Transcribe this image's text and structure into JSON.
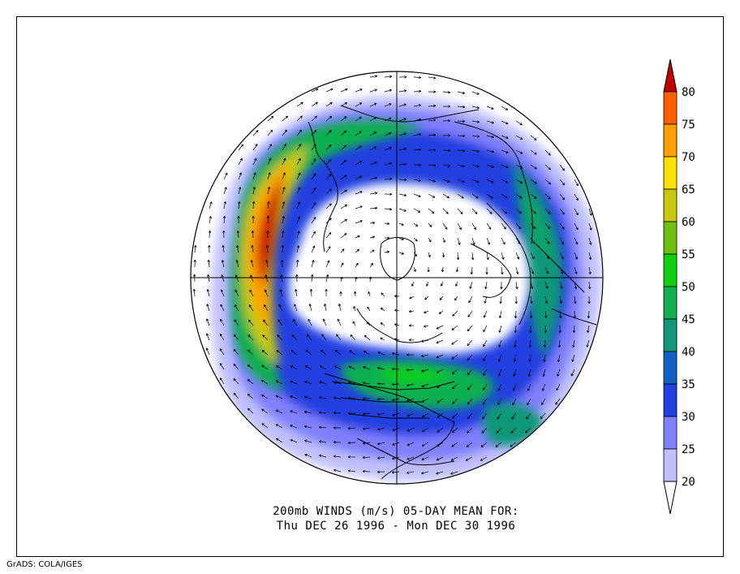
{
  "title_line1": "200mb WINDS (m/s)   05-DAY MEAN FOR:",
  "title_line2": "Thu DEC 26 1996 - Mon DEC 30 1996",
  "footer": "GrADS: COLA/IGES",
  "projection": "north-polar-stereographic",
  "units": "m/s",
  "colorbar": {
    "levels": [
      20,
      25,
      30,
      35,
      40,
      45,
      50,
      55,
      60,
      65,
      70,
      75,
      80
    ],
    "colors": [
      "#ffffff",
      "#c0c0ff",
      "#8080ff",
      "#2040e0",
      "#1060c8",
      "#109878",
      "#10b050",
      "#10d010",
      "#70c010",
      "#c8c810",
      "#ffe000",
      "#ffa000",
      "#ff6000",
      "#c00000"
    ]
  },
  "map_elements": {
    "wind-vectors": "vector-field",
    "coastlines": "black",
    "graticule": "cross at pole"
  }
}
